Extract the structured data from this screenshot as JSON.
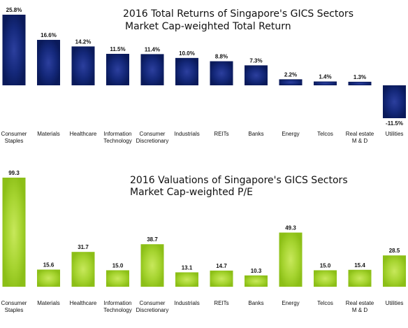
{
  "chart_data": [
    {
      "type": "bar",
      "title": "2016 Total Returns of Singapore's GICS Sectors",
      "subtitle": "Market Cap-weighted Total Return",
      "categories": [
        [
          "Consumer",
          "Staples"
        ],
        [
          "Materials"
        ],
        [
          "Healthcare"
        ],
        [
          "Information",
          "Technology"
        ],
        [
          "Consumer",
          "Discretionary"
        ],
        [
          "Industrials"
        ],
        [
          "REITs"
        ],
        [
          "Banks"
        ],
        [
          "Energy"
        ],
        [
          "Telcos"
        ],
        [
          "Real estate",
          "M & D"
        ],
        [
          "Utilities"
        ]
      ],
      "values": [
        25.8,
        16.6,
        14.2,
        11.5,
        11.4,
        10.0,
        8.8,
        7.3,
        2.2,
        1.4,
        1.3,
        -11.5
      ],
      "labels": [
        "25.8%",
        "16.6%",
        "14.2%",
        "11.5%",
        "11.4%",
        "10.0%",
        "8.8%",
        "7.3%",
        "2.2%",
        "1.4%",
        "1.3%",
        "-11.5%"
      ],
      "color": "#0d1f66",
      "highlight": "#2c3f9e",
      "xlabel": "",
      "ylabel": "",
      "ylim": [
        -11.5,
        25.8
      ],
      "grid": false
    },
    {
      "type": "bar",
      "title": "2016 Valuations of Singapore's GICS Sectors",
      "subtitle": "Market Cap-weighted P/E",
      "categories": [
        [
          "Consumer",
          "Staples"
        ],
        [
          "Materials"
        ],
        [
          "Healthcare"
        ],
        [
          "Information",
          "Technology"
        ],
        [
          "Consumer",
          "Discretionary"
        ],
        [
          "Industrials"
        ],
        [
          "REITs"
        ],
        [
          "Banks"
        ],
        [
          "Energy"
        ],
        [
          "Telcos"
        ],
        [
          "Real estate",
          "M & D"
        ],
        [
          "Utilities"
        ]
      ],
      "values": [
        99.3,
        15.6,
        31.7,
        15.0,
        38.7,
        13.1,
        14.7,
        10.3,
        49.3,
        15.0,
        15.4,
        28.5
      ],
      "labels": [
        "99.3",
        "15.6",
        "31.7",
        "15.0",
        "38.7",
        "13.1",
        "14.7",
        "10.3",
        "49.3",
        "15.0",
        "15.4",
        "28.5"
      ],
      "color": "#8cbf17",
      "highlight": "#c8e85c",
      "xlabel": "",
      "ylabel": "",
      "ylim": [
        0,
        99.3
      ],
      "grid": false
    }
  ]
}
